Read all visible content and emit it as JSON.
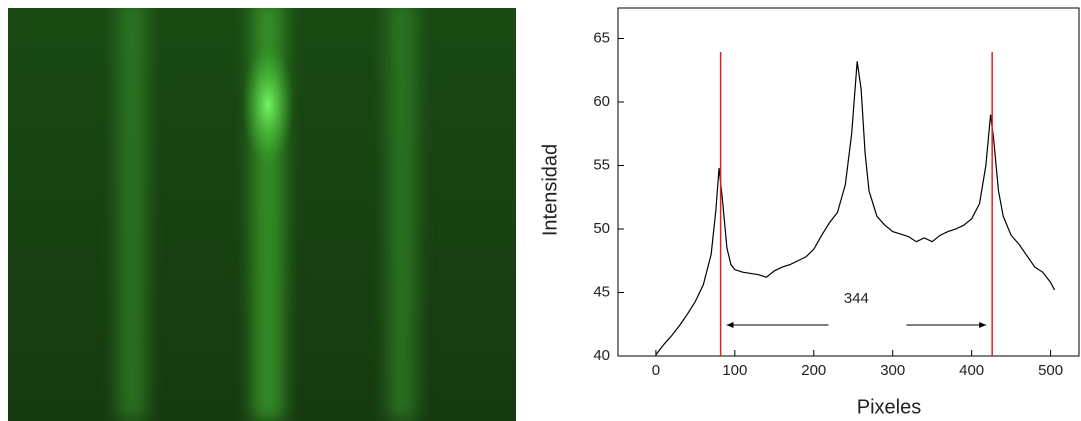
{
  "chart_data": {
    "type": "line",
    "xlabel": "Pixeles",
    "ylabel": "Intensidad",
    "x": [
      0,
      10,
      20,
      30,
      40,
      50,
      60,
      70,
      76,
      80,
      84,
      90,
      95,
      100,
      110,
      120,
      130,
      140,
      150,
      160,
      170,
      180,
      190,
      200,
      210,
      220,
      230,
      240,
      248,
      255,
      260,
      265,
      270,
      280,
      290,
      300,
      310,
      320,
      330,
      340,
      350,
      360,
      370,
      380,
      390,
      400,
      410,
      418,
      424,
      428,
      434,
      440,
      450,
      460,
      470,
      480,
      490,
      500,
      505
    ],
    "series": [
      {
        "color": "#000000",
        "values": [
          40.1,
          40.9,
          41.6,
          42.4,
          43.3,
          44.3,
          45.6,
          48.0,
          51.5,
          54.8,
          52.5,
          48.5,
          47.2,
          46.8,
          46.6,
          46.5,
          46.4,
          46.2,
          46.7,
          47.0,
          47.2,
          47.5,
          47.8,
          48.4,
          49.5,
          50.5,
          51.3,
          53.5,
          57.5,
          63.2,
          61.0,
          56.0,
          53.0,
          51.0,
          50.3,
          49.8,
          49.6,
          49.4,
          49.0,
          49.3,
          49.0,
          49.5,
          49.8,
          50.0,
          50.3,
          50.8,
          52.0,
          55.0,
          59.0,
          57.0,
          53.0,
          51.0,
          49.5,
          48.8,
          47.9,
          47.0,
          46.6,
          45.8,
          45.2
        ]
      }
    ],
    "vlines": [
      82,
      426
    ],
    "vline_color": "#e02020",
    "annotation": "344",
    "xlim": [
      -48,
      536
    ],
    "ylim": [
      40,
      67.4
    ],
    "xticks": [
      0,
      100,
      200,
      300,
      400,
      500
    ],
    "yticks": [
      40,
      45,
      50,
      55,
      60,
      65
    ]
  }
}
